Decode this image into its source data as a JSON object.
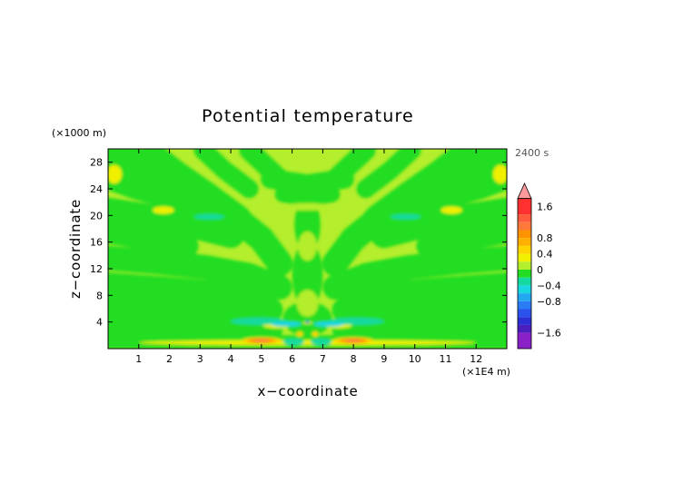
{
  "chart_data": {
    "type": "heatmap",
    "title": "Potential temperature",
    "time_label": "2400 s",
    "xlabel": "x−coordinate",
    "ylabel": "z−coordinate",
    "x_unit": "(×1E4 m)",
    "y_unit": "(×1000 m)",
    "xlim": [
      0,
      13
    ],
    "ylim": [
      0,
      30
    ],
    "x_ticks": [
      1,
      2,
      3,
      4,
      5,
      6,
      7,
      8,
      9,
      10,
      11,
      12
    ],
    "y_ticks": [
      4,
      8,
      12,
      16,
      20,
      24,
      28
    ],
    "colorbar": {
      "labels": [
        {
          "value": 1.6,
          "text": "1.6"
        },
        {
          "value": 0.8,
          "text": "0.8"
        },
        {
          "value": 0.4,
          "text": "0.4"
        },
        {
          "value": 0,
          "text": "0"
        },
        {
          "value": -0.4,
          "text": "−0.4"
        },
        {
          "value": -0.8,
          "text": "−0.8"
        },
        {
          "value": -1.6,
          "text": "−1.6"
        }
      ],
      "levels": [
        {
          "from": 1.8,
          "to": 2.0,
          "color": "#ff9a9a"
        },
        {
          "from": 1.4,
          "to": 1.8,
          "color": "#ff3030"
        },
        {
          "from": 1.2,
          "to": 1.4,
          "color": "#ff5a3c"
        },
        {
          "from": 1.0,
          "to": 1.2,
          "color": "#ff7a3a"
        },
        {
          "from": 0.8,
          "to": 1.0,
          "color": "#ff9400"
        },
        {
          "from": 0.6,
          "to": 0.8,
          "color": "#ffb000"
        },
        {
          "from": 0.4,
          "to": 0.6,
          "color": "#ffd400"
        },
        {
          "from": 0.2,
          "to": 0.4,
          "color": "#f0f000"
        },
        {
          "from": 0.0,
          "to": 0.2,
          "color": "#b4ee2c"
        },
        {
          "from": -0.2,
          "to": 0.0,
          "color": "#22dd22"
        },
        {
          "from": -0.4,
          "to": -0.2,
          "color": "#14d9a0"
        },
        {
          "from": -0.6,
          "to": -0.4,
          "color": "#1ad6e0"
        },
        {
          "from": -0.8,
          "to": -0.6,
          "color": "#22a8f0"
        },
        {
          "from": -1.0,
          "to": -0.8,
          "color": "#2a7cf5"
        },
        {
          "from": -1.2,
          "to": -1.0,
          "color": "#2c52ee"
        },
        {
          "from": -1.4,
          "to": -1.2,
          "color": "#2a30d6"
        },
        {
          "from": -1.6,
          "to": -1.4,
          "color": "#4a1fbe"
        },
        {
          "from": -2.0,
          "to": -1.6,
          "color": "#8a20c8"
        }
      ],
      "range": [
        -2.0,
        2.0
      ]
    },
    "background_value": 0.1,
    "features": [
      {
        "kind": "band",
        "value": -0.1,
        "points": [
          [
            0.2,
            29.8
          ],
          [
            1.4,
            27.0
          ],
          [
            2.8,
            23.6
          ],
          [
            4.0,
            20.2
          ],
          [
            5.0,
            16.5
          ],
          [
            5.6,
            12.8
          ]
        ],
        "half_width": 0.42
      },
      {
        "kind": "band",
        "value": -0.1,
        "points": [
          [
            12.8,
            29.8
          ],
          [
            11.6,
            27.0
          ],
          [
            10.2,
            23.6
          ],
          [
            9.0,
            20.2
          ],
          [
            8.0,
            16.5
          ],
          [
            7.4,
            12.8
          ]
        ],
        "half_width": 0.42
      },
      {
        "kind": "band",
        "value": -0.1,
        "points": [
          [
            1.4,
            29.8
          ],
          [
            2.3,
            26.6
          ],
          [
            3.3,
            23.4
          ],
          [
            4.3,
            20.0
          ],
          [
            5.0,
            16.0
          ]
        ],
        "half_width": 0.32
      },
      {
        "kind": "band",
        "value": -0.1,
        "points": [
          [
            11.6,
            29.8
          ],
          [
            10.7,
            26.6
          ],
          [
            9.7,
            23.4
          ],
          [
            8.7,
            20.0
          ],
          [
            8.0,
            16.0
          ]
        ],
        "half_width": 0.32
      },
      {
        "kind": "band",
        "value": -0.1,
        "points": [
          [
            3.1,
            29.8
          ],
          [
            3.8,
            26.8
          ],
          [
            4.6,
            24.0
          ]
        ],
        "half_width": 0.3
      },
      {
        "kind": "band",
        "value": -0.1,
        "points": [
          [
            9.9,
            29.8
          ],
          [
            9.2,
            26.8
          ],
          [
            8.4,
            24.0
          ]
        ],
        "half_width": 0.3
      },
      {
        "kind": "band",
        "value": -0.1,
        "points": [
          [
            4.6,
            29.8
          ],
          [
            5.2,
            27.2
          ],
          [
            5.8,
            24.6
          ]
        ],
        "half_width": 0.32
      },
      {
        "kind": "band",
        "value": -0.1,
        "points": [
          [
            8.4,
            29.8
          ],
          [
            7.8,
            27.2
          ],
          [
            7.2,
            24.6
          ]
        ],
        "half_width": 0.32
      },
      {
        "kind": "band",
        "value": -0.1,
        "points": [
          [
            0.0,
            26.0
          ],
          [
            0.9,
            24.5
          ],
          [
            1.9,
            23.2
          ],
          [
            2.8,
            22.0
          ]
        ],
        "half_width": 0.45
      },
      {
        "kind": "band",
        "value": -0.1,
        "points": [
          [
            13.0,
            26.0
          ],
          [
            12.1,
            24.5
          ],
          [
            11.1,
            23.2
          ],
          [
            10.2,
            22.0
          ]
        ],
        "half_width": 0.45
      },
      {
        "kind": "band",
        "value": -0.1,
        "points": [
          [
            0.0,
            20.6
          ],
          [
            1.4,
            19.6
          ],
          [
            2.8,
            18.6
          ],
          [
            4.0,
            17.2
          ]
        ],
        "half_width": 0.45
      },
      {
        "kind": "band",
        "value": -0.1,
        "points": [
          [
            13.0,
            20.6
          ],
          [
            11.6,
            19.6
          ],
          [
            10.2,
            18.6
          ],
          [
            9.0,
            17.2
          ]
        ],
        "half_width": 0.45
      },
      {
        "kind": "band",
        "value": -0.1,
        "points": [
          [
            0.0,
            17.4
          ],
          [
            1.3,
            16.4
          ],
          [
            2.6,
            15.4
          ]
        ],
        "half_width": 0.35
      },
      {
        "kind": "band",
        "value": -0.1,
        "points": [
          [
            13.0,
            17.4
          ],
          [
            11.7,
            16.4
          ],
          [
            10.4,
            15.4
          ]
        ],
        "half_width": 0.35
      },
      {
        "kind": "band",
        "value": -0.1,
        "points": [
          [
            0.0,
            13.6
          ],
          [
            1.6,
            13.0
          ],
          [
            3.2,
            12.2
          ],
          [
            4.6,
            11.0
          ],
          [
            5.6,
            9.2
          ]
        ],
        "half_width": 0.4
      },
      {
        "kind": "band",
        "value": -0.1,
        "points": [
          [
            13.0,
            13.6
          ],
          [
            11.4,
            13.0
          ],
          [
            9.8,
            12.2
          ],
          [
            8.4,
            11.0
          ],
          [
            7.4,
            9.2
          ]
        ],
        "half_width": 0.4
      },
      {
        "kind": "band",
        "value": -0.1,
        "points": [
          [
            0.0,
            9.6
          ],
          [
            1.8,
            9.0
          ],
          [
            3.4,
            8.4
          ],
          [
            4.6,
            7.2
          ],
          [
            5.3,
            5.8
          ]
        ],
        "half_width": 0.4
      },
      {
        "kind": "band",
        "value": -0.1,
        "points": [
          [
            13.0,
            9.6
          ],
          [
            11.2,
            9.0
          ],
          [
            9.6,
            8.4
          ],
          [
            8.4,
            7.2
          ],
          [
            7.7,
            5.8
          ]
        ],
        "half_width": 0.4
      },
      {
        "kind": "band",
        "value": -0.1,
        "points": [
          [
            0.0,
            6.4
          ],
          [
            2.0,
            5.8
          ],
          [
            3.8,
            5.1
          ],
          [
            5.0,
            4.3
          ]
        ],
        "half_width": 0.35
      },
      {
        "kind": "band",
        "value": -0.1,
        "points": [
          [
            13.0,
            6.4
          ],
          [
            11.0,
            5.8
          ],
          [
            9.2,
            5.1
          ],
          [
            8.0,
            4.3
          ]
        ],
        "half_width": 0.35
      },
      {
        "kind": "band",
        "value": -0.1,
        "points": [
          [
            0.0,
            3.4
          ],
          [
            3.0,
            3.2
          ],
          [
            5.4,
            2.9
          ]
        ],
        "half_width": 0.3
      },
      {
        "kind": "band",
        "value": -0.1,
        "points": [
          [
            13.0,
            3.4
          ],
          [
            10.0,
            3.2
          ],
          [
            7.6,
            2.9
          ]
        ],
        "half_width": 0.3
      },
      {
        "kind": "band",
        "value": -0.1,
        "points": [
          [
            0.0,
            1.0
          ],
          [
            13.0,
            1.0
          ]
        ],
        "half_width": 0.22
      },
      {
        "kind": "band",
        "value": -0.1,
        "points": [
          [
            5.3,
            25.5
          ],
          [
            6.5,
            24.7
          ],
          [
            7.7,
            25.5
          ]
        ],
        "half_width": 0.32
      },
      {
        "kind": "band",
        "value": -0.1,
        "points": [
          [
            5.7,
            23.2
          ],
          [
            6.5,
            22.3
          ],
          [
            7.3,
            23.2
          ]
        ],
        "half_width": 0.26
      },
      {
        "kind": "blob",
        "value": -0.1,
        "x": 6.5,
        "y": 18.6,
        "rx": 0.42,
        "ry": 4.2
      },
      {
        "kind": "blob",
        "value": -0.1,
        "x": 6.5,
        "y": 11.0,
        "rx": 0.5,
        "ry": 5.0
      },
      {
        "kind": "blob",
        "value": -0.1,
        "x": 6.5,
        "y": 4.5,
        "rx": 0.8,
        "ry": 2.6
      },
      {
        "kind": "blob",
        "value": 0.1,
        "x": 6.5,
        "y": 21.3,
        "rx": 0.8,
        "ry": 0.55
      },
      {
        "kind": "blob",
        "value": 0.1,
        "x": 6.5,
        "y": 15.4,
        "rx": 0.3,
        "ry": 2.2
      },
      {
        "kind": "blob",
        "value": 0.1,
        "x": 6.5,
        "y": 6.8,
        "rx": 0.35,
        "ry": 2.0
      },
      {
        "kind": "blob",
        "value": 0.3,
        "x": 0.2,
        "y": 26.2,
        "rx": 0.25,
        "ry": 1.4
      },
      {
        "kind": "blob",
        "value": 0.3,
        "x": 12.8,
        "y": 26.2,
        "rx": 0.25,
        "ry": 1.4
      },
      {
        "kind": "blob",
        "value": 0.3,
        "x": 1.8,
        "y": 20.8,
        "rx": 0.35,
        "ry": 0.55
      },
      {
        "kind": "blob",
        "value": 0.3,
        "x": 11.2,
        "y": 20.8,
        "rx": 0.35,
        "ry": 0.55
      },
      {
        "kind": "blob",
        "value": -0.3,
        "x": 3.3,
        "y": 19.8,
        "rx": 0.5,
        "ry": 0.4
      },
      {
        "kind": "blob",
        "value": -0.3,
        "x": 9.7,
        "y": 19.8,
        "rx": 0.5,
        "ry": 0.4
      },
      {
        "kind": "blob",
        "value": 0.3,
        "x": 6.5,
        "y": 0.9,
        "rx": 5.5,
        "ry": 0.4
      },
      {
        "kind": "blob",
        "value": 0.3,
        "x": 5.5,
        "y": 3.5,
        "rx": 0.45,
        "ry": 0.45
      },
      {
        "kind": "blob",
        "value": 0.3,
        "x": 7.5,
        "y": 3.5,
        "rx": 0.45,
        "ry": 0.45
      },
      {
        "kind": "blob",
        "value": 0.3,
        "x": 6.5,
        "y": 3.9,
        "rx": 0.15,
        "ry": 0.2
      },
      {
        "kind": "blob",
        "value": -0.3,
        "x": 4.9,
        "y": 4.1,
        "rx": 0.9,
        "ry": 0.55
      },
      {
        "kind": "blob",
        "value": -0.3,
        "x": 8.1,
        "y": 4.1,
        "rx": 0.9,
        "ry": 0.55
      },
      {
        "kind": "blob",
        "value": -0.5,
        "x": 5.8,
        "y": 3.7,
        "rx": 0.5,
        "ry": 0.4
      },
      {
        "kind": "blob",
        "value": -0.5,
        "x": 7.2,
        "y": 3.7,
        "rx": 0.5,
        "ry": 0.4
      },
      {
        "kind": "blob",
        "value": -0.3,
        "x": 6.05,
        "y": 1.0,
        "rx": 0.35,
        "ry": 0.5
      },
      {
        "kind": "blob",
        "value": -0.3,
        "x": 6.95,
        "y": 1.0,
        "rx": 0.35,
        "ry": 0.5
      },
      {
        "kind": "blob",
        "value": -1.1,
        "x": 6.5,
        "y": 4.0,
        "rx": 0.08,
        "ry": 0.15
      },
      {
        "kind": "blob",
        "value": 0.5,
        "x": 6.25,
        "y": 2.2,
        "rx": 0.1,
        "ry": 0.4
      },
      {
        "kind": "blob",
        "value": 0.5,
        "x": 6.75,
        "y": 2.2,
        "rx": 0.1,
        "ry": 0.4
      },
      {
        "kind": "blob",
        "value": 0.5,
        "x": 5.0,
        "y": 1.2,
        "rx": 0.65,
        "ry": 0.5
      },
      {
        "kind": "blob",
        "value": 0.5,
        "x": 8.0,
        "y": 1.2,
        "rx": 0.65,
        "ry": 0.5
      },
      {
        "kind": "blob",
        "value": 0.9,
        "x": 5.0,
        "y": 1.2,
        "rx": 0.45,
        "ry": 0.35
      },
      {
        "kind": "blob",
        "value": 0.9,
        "x": 8.0,
        "y": 1.2,
        "rx": 0.45,
        "ry": 0.35
      },
      {
        "kind": "blob",
        "value": 1.15,
        "x": 5.0,
        "y": 1.2,
        "rx": 0.25,
        "ry": 0.2
      },
      {
        "kind": "blob",
        "value": 1.15,
        "x": 8.0,
        "y": 1.2,
        "rx": 0.25,
        "ry": 0.2
      }
    ]
  }
}
